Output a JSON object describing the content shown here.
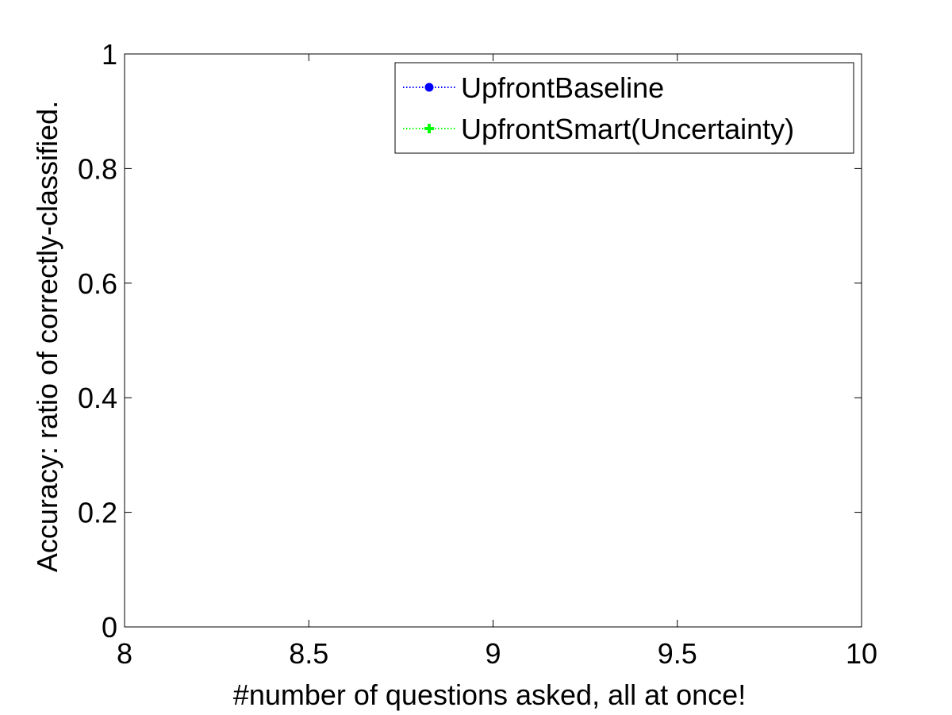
{
  "chart_data": {
    "type": "line",
    "title": "",
    "xlabel": "#number of questions asked, all at once!",
    "ylabel": "Accuracy: ratio of correctly-classified.",
    "xlim": [
      8,
      10
    ],
    "ylim": [
      0,
      1
    ],
    "x_ticks": [
      8,
      8.5,
      9,
      9.5,
      10
    ],
    "x_tick_labels": [
      "8",
      "8.5",
      "9",
      "9.5",
      "10"
    ],
    "y_ticks": [
      0,
      0.2,
      0.4,
      0.6,
      0.8,
      1
    ],
    "y_tick_labels": [
      "0",
      "0.2",
      "0.4",
      "0.6",
      "0.8",
      "1"
    ],
    "grid": false,
    "legend_position": "top-right",
    "series": [
      {
        "name": "UpfrontBaseline",
        "color": "#0000ff",
        "line_style": "dotted",
        "marker": "circle",
        "x": [],
        "y": []
      },
      {
        "name": "UpfrontSmart(Uncertainty)",
        "color": "#00ff00",
        "line_style": "dotted",
        "marker": "plus",
        "x": [],
        "y": []
      }
    ]
  }
}
